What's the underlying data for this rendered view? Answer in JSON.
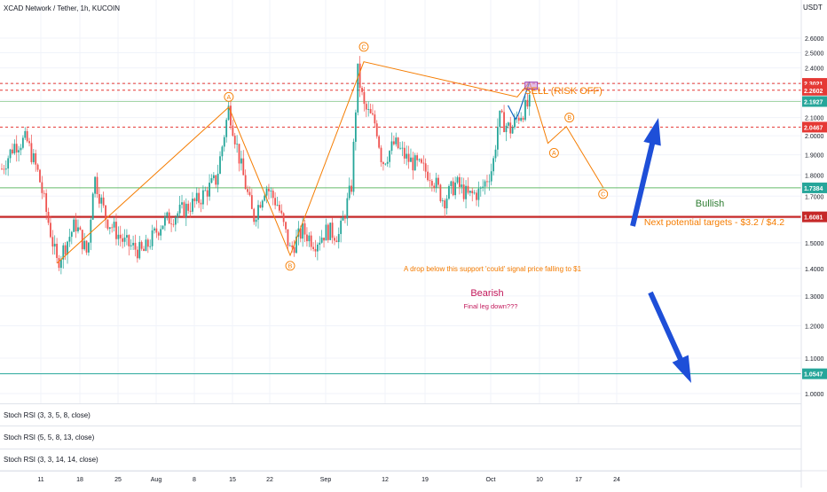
{
  "header": {
    "title": "XCAD Network / Tether, 1h, KUCOIN",
    "currency": "USDT"
  },
  "colors": {
    "bull": "#26a69a",
    "bear": "#ef5350",
    "wave": "#f57c00",
    "resistance_dash": "#e53935",
    "support_green": "#66bb6a",
    "support_red": "#c62828",
    "target_line": "#26a69a",
    "arrow_blue": "#1e4fd8",
    "text_orange": "#f57c00",
    "text_red": "#d32f2f",
    "text_green": "#2e7d32",
    "bearish_text": "#c2185b"
  },
  "chart_data": {
    "type": "candlestick",
    "y_axis": {
      "scale": "log",
      "ylim": [
        0.97,
        3.0
      ],
      "ticks": [
        "1.0000",
        "1.1000",
        "1.2000",
        "1.3000",
        "1.4000",
        "1.5000",
        "1.6000",
        "1.7000",
        "1.8000",
        "1.9000",
        "2.0000",
        "2.1000",
        "2.2000",
        "2.3000",
        "2.4000",
        "2.5000",
        "2.6000"
      ]
    },
    "x_axis": {
      "ticks": [
        "11",
        "18",
        "25",
        "Aug",
        "8",
        "15",
        "22",
        "Sep",
        "12",
        "19",
        "Oct",
        "10",
        "17",
        "24"
      ]
    },
    "price_path": [
      {
        "t": 0,
        "p": 1.83
      },
      {
        "t": 2,
        "p": 1.95
      },
      {
        "t": 4,
        "p": 1.98
      },
      {
        "t": 6,
        "p": 1.8
      },
      {
        "t": 9,
        "p": 1.42
      },
      {
        "t": 12,
        "p": 1.58
      },
      {
        "t": 14,
        "p": 1.45
      },
      {
        "t": 15,
        "p": 1.8
      },
      {
        "t": 17,
        "p": 1.6
      },
      {
        "t": 20,
        "p": 1.5
      },
      {
        "t": 23,
        "p": 1.46
      },
      {
        "t": 26,
        "p": 1.58
      },
      {
        "t": 29,
        "p": 1.63
      },
      {
        "t": 32,
        "p": 1.68
      },
      {
        "t": 35,
        "p": 1.78
      },
      {
        "t": 37,
        "p": 2.16
      },
      {
        "t": 39,
        "p": 1.84
      },
      {
        "t": 41,
        "p": 1.6
      },
      {
        "t": 43,
        "p": 1.75
      },
      {
        "t": 45,
        "p": 1.66
      },
      {
        "t": 47,
        "p": 1.47
      },
      {
        "t": 49,
        "p": 1.55
      },
      {
        "t": 51,
        "p": 1.5
      },
      {
        "t": 53,
        "p": 1.55
      },
      {
        "t": 55,
        "p": 1.53
      },
      {
        "t": 57,
        "p": 1.75
      },
      {
        "t": 58,
        "p": 2.38
      },
      {
        "t": 59,
        "p": 2.16
      },
      {
        "t": 61,
        "p": 2.06
      },
      {
        "t": 62,
        "p": 1.86
      },
      {
        "t": 64,
        "p": 1.96
      },
      {
        "t": 66,
        "p": 1.88
      },
      {
        "t": 68,
        "p": 1.84
      },
      {
        "t": 70,
        "p": 1.8
      },
      {
        "t": 72,
        "p": 1.68
      },
      {
        "t": 74,
        "p": 1.76
      },
      {
        "t": 76,
        "p": 1.7
      },
      {
        "t": 78,
        "p": 1.72
      },
      {
        "t": 80,
        "p": 1.84
      },
      {
        "t": 81,
        "p": 2.1
      },
      {
        "t": 83,
        "p": 2.03
      },
      {
        "t": 84,
        "p": 2.1
      },
      {
        "t": 86,
        "p": 2.18
      }
    ],
    "horizontal_levels": [
      {
        "price": 2.3021,
        "label": "2.3021",
        "style": "dashed",
        "role": "resistance"
      },
      {
        "price": 2.2602,
        "label": "2.2602",
        "style": "dashed",
        "role": "resistance"
      },
      {
        "price": 2.1927,
        "label": "2.1927",
        "style": "solid",
        "role": "neutral"
      },
      {
        "price": 2.0467,
        "label": "2.0467",
        "style": "dashed",
        "role": "resistance"
      },
      {
        "price": 1.7384,
        "label": "1.7384",
        "style": "solid",
        "role": "support"
      },
      {
        "price": 1.6081,
        "label": "1.6081",
        "style": "solid",
        "role": "major-support"
      },
      {
        "price": 1.0547,
        "label": "1.0547",
        "style": "solid",
        "role": "target"
      }
    ],
    "wave_path": [
      {
        "t": 9,
        "p": 1.42
      },
      {
        "t": 37,
        "p": 2.16
      },
      {
        "t": 47,
        "p": 1.45
      },
      {
        "t": 59,
        "p": 2.44
      },
      {
        "t": 84,
        "p": 2.22
      },
      {
        "t": 86,
        "p": 2.31
      },
      {
        "t": 89,
        "p": 1.96
      },
      {
        "t": 92,
        "p": 2.05
      },
      {
        "t": 98,
        "p": 1.74
      }
    ],
    "wave_labels": [
      {
        "text": "A",
        "t": 37,
        "p": 2.22
      },
      {
        "text": "B",
        "t": 47,
        "p": 1.41
      },
      {
        "text": "C",
        "t": 59,
        "p": 2.54
      },
      {
        "text": "A",
        "t": 90,
        "p": 1.91
      },
      {
        "text": "B",
        "t": 92.5,
        "p": 2.1
      },
      {
        "text": "C",
        "t": 98,
        "p": 1.71
      }
    ],
    "annotations": {
      "sell": "SELL (RISK OFF)",
      "bullish": "Bullish",
      "targets": "Next potential targets - $3.2 / $4.2",
      "support_note": "A drop below this support 'could' signal price falling  to $1",
      "bearish": "Bearish",
      "final_leg": "Final leg down???"
    },
    "indicators": [
      "Stoch RSI (3, 3, 5, 8, close)",
      "Stoch RSI (5, 5, 8, 13, close)",
      "Stoch RSI (3, 3, 14, 14, close)"
    ]
  }
}
